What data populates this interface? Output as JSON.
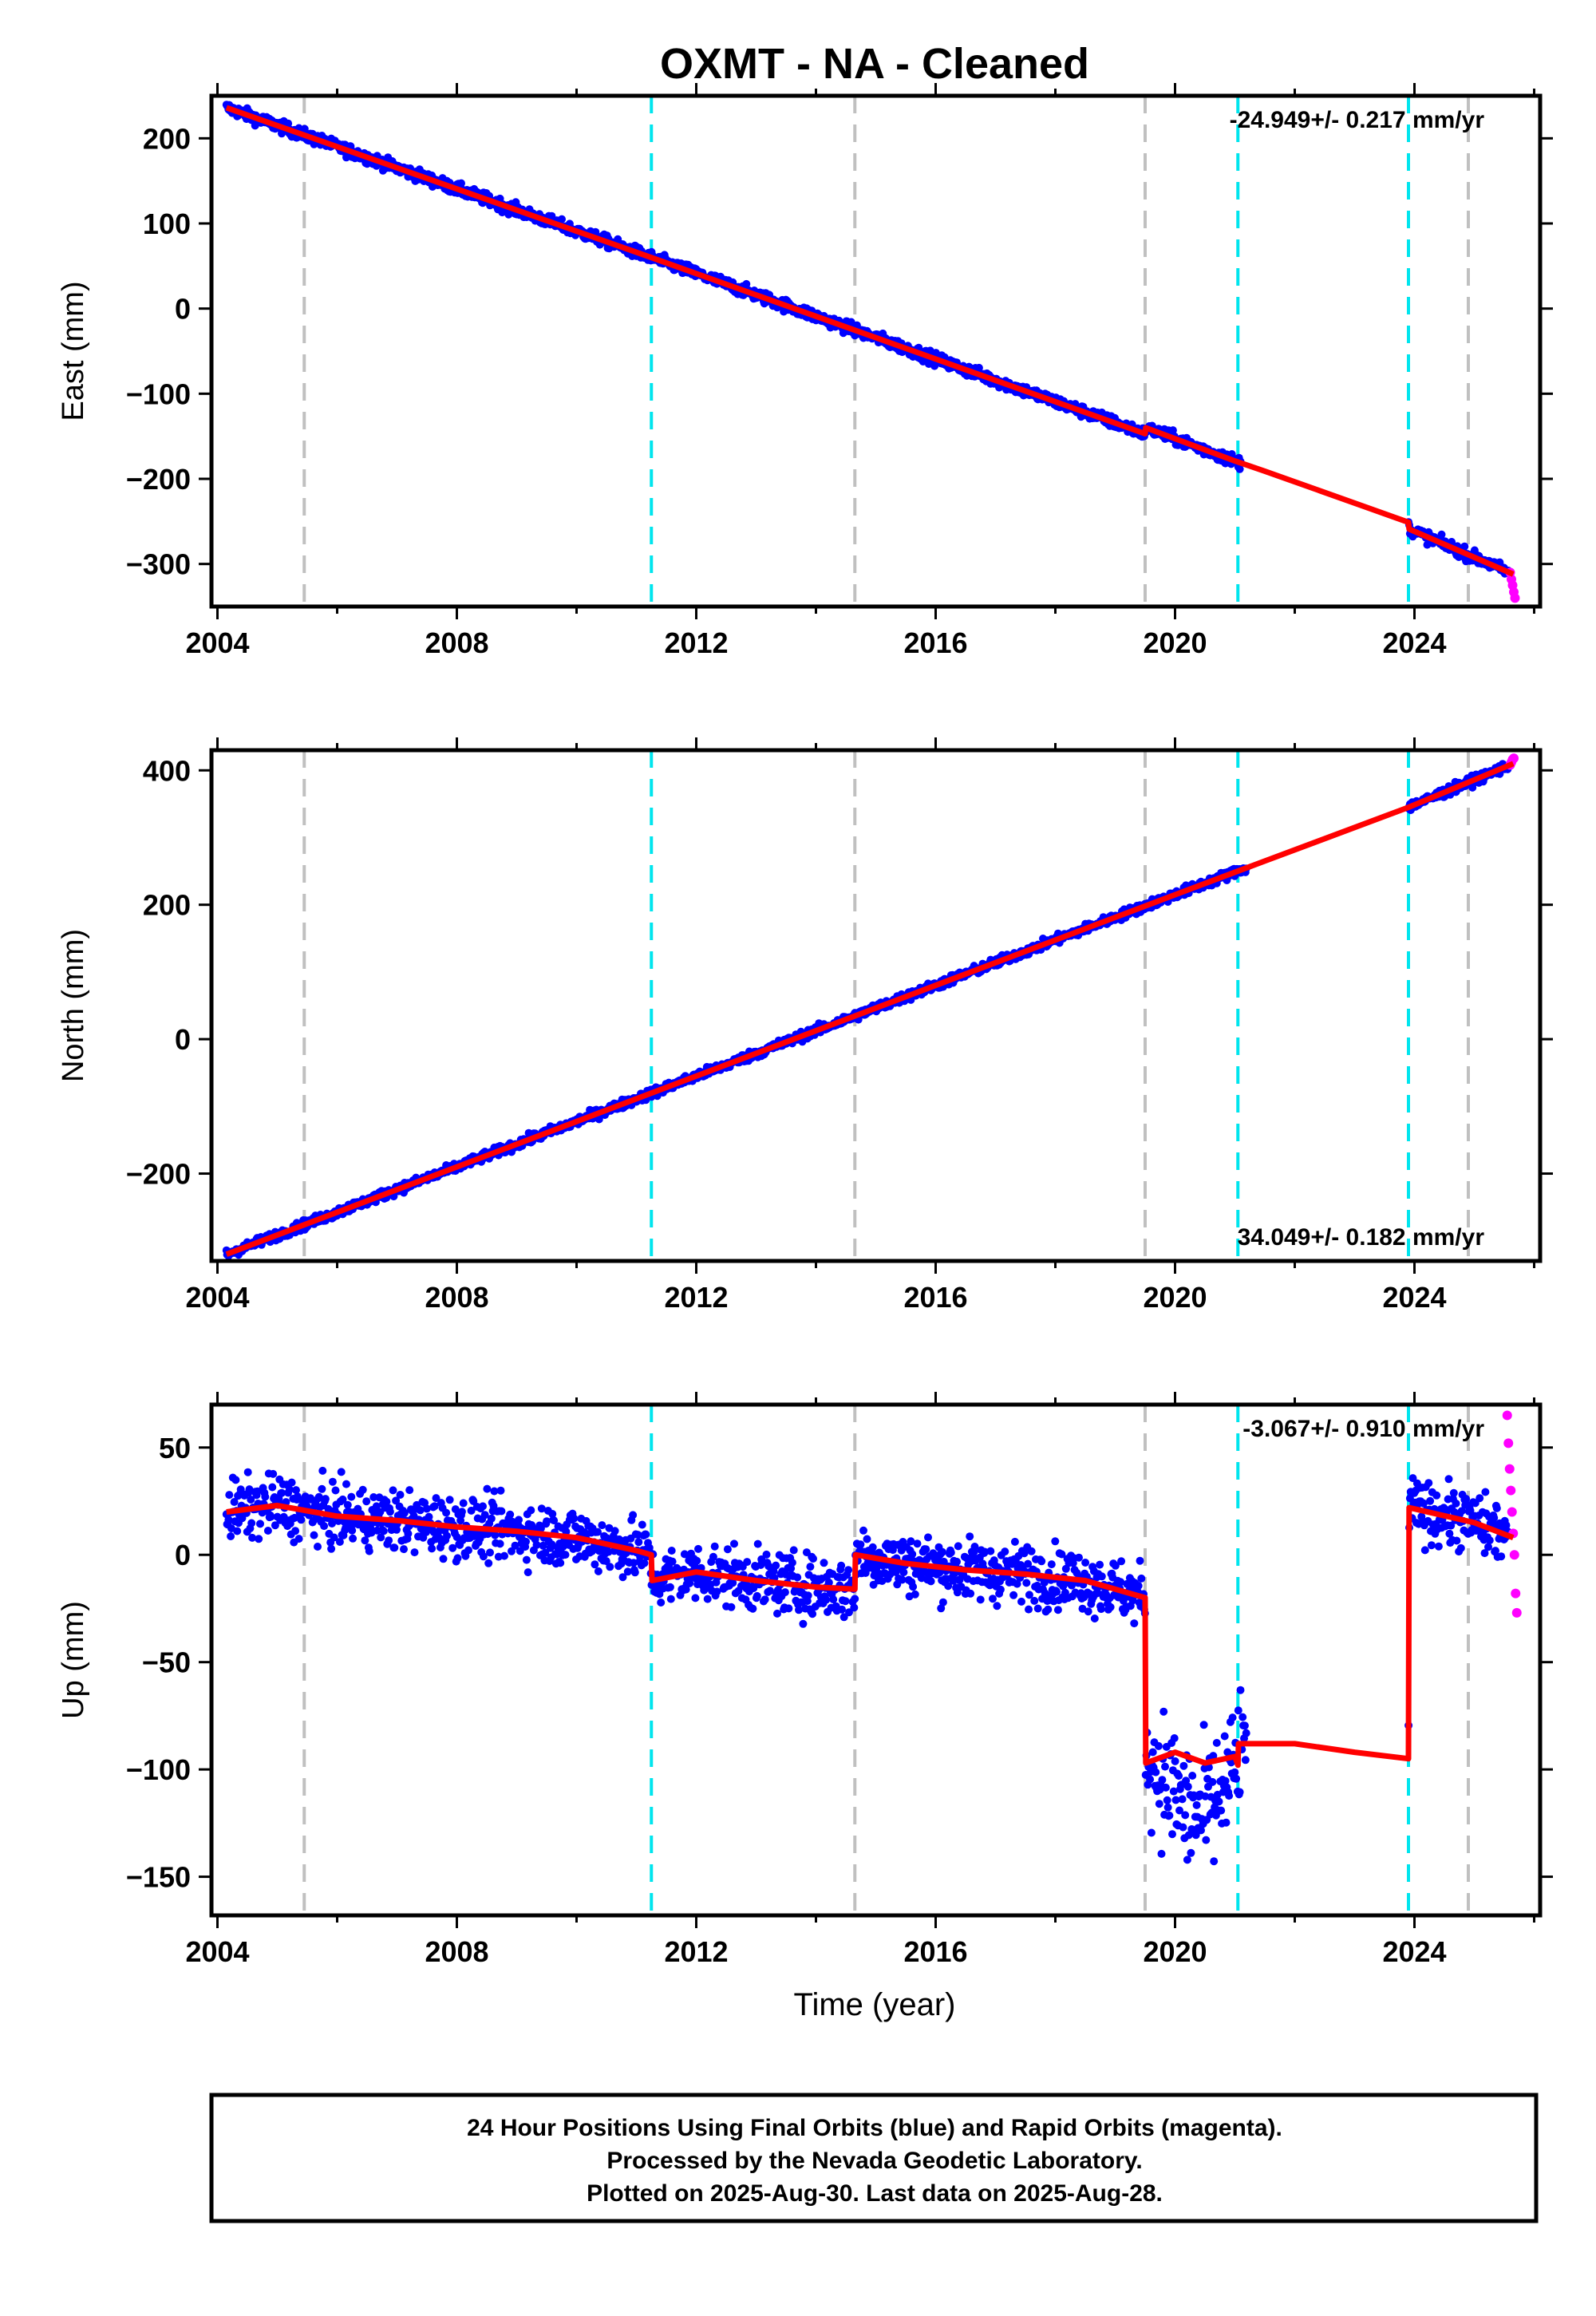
{
  "title": "OXMT  - NA - Cleaned",
  "x_axis_label": "Time (year)",
  "footer_lines": [
    "24 Hour Positions Using Final Orbits (blue) and Rapid Orbits (magenta).",
    "Processed by the Nevada Geodetic Laboratory.",
    "Plotted on 2025-Aug-30. Last data on 2025-Aug-28."
  ],
  "colors": {
    "final_orbits": "#0000ff",
    "rapid_orbits": "#ff00ff",
    "model_fit": "#ff0000",
    "equipment_change_lines": "#00e5ee",
    "other_event_lines": "#c0c0c0"
  },
  "chart_data": [
    {
      "type": "scatter",
      "component": "east",
      "ylabel": "East (mm)",
      "rate_text": "-24.949+/- 0.217 mm/yr",
      "rate_position": "top-right",
      "xlim": [
        2003.9,
        2026.1
      ],
      "ylim": [
        -350,
        250
      ],
      "x_ticks": [
        2004,
        2008,
        2012,
        2016,
        2020,
        2024
      ],
      "y_ticks": [
        -300,
        -200,
        -100,
        0,
        100,
        200
      ],
      "grid": false,
      "gaps": [
        [
          2021.1,
          2023.9
        ]
      ],
      "noise": 5,
      "event_lines_cyan": [
        2011.25,
        2021.05,
        2023.9
      ],
      "event_lines_gray": [
        2005.45,
        2014.65,
        2019.5,
        2024.9
      ],
      "fit_line": {
        "x": [
          2004.15,
          2011.25,
          2019.5,
          2019.51,
          2021.0,
          2021.5,
          2023.9,
          2023.91,
          2025.65
        ],
        "y": [
          236,
          60,
          -147,
          -140,
          -179,
          -191,
          -251,
          -259,
          -312
        ]
      },
      "rapid_points": {
        "x": [
          2025.6,
          2025.62,
          2025.64,
          2025.66,
          2025.68
        ],
        "y": [
          -310,
          -318,
          -325,
          -333,
          -340
        ]
      }
    },
    {
      "type": "scatter",
      "component": "north",
      "ylabel": "North (mm)",
      "rate_text": "34.049+/- 0.182 mm/yr",
      "rate_position": "bottom-right",
      "xlim": [
        2003.9,
        2026.1
      ],
      "ylim": [
        -330,
        430
      ],
      "x_ticks": [
        2004,
        2008,
        2012,
        2016,
        2020,
        2024
      ],
      "y_ticks": [
        -200,
        0,
        200,
        400
      ],
      "grid": false,
      "gaps": [
        [
          2021.2,
          2023.9
        ]
      ],
      "noise": 5,
      "event_lines_cyan": [
        2011.25,
        2021.05,
        2023.9
      ],
      "event_lines_gray": [
        2005.45,
        2014.65,
        2019.5,
        2024.9
      ],
      "fit_line": {
        "x": [
          2004.15,
          2012.0,
          2016.0,
          2020.0,
          2021.5,
          2023.9,
          2025.65
        ],
        "y": [
          -320,
          -55,
          80,
          215,
          265,
          345,
          410
        ]
      },
      "rapid_points": {
        "x": [
          2025.6,
          2025.62,
          2025.64,
          2025.66
        ],
        "y": [
          408,
          412,
          416,
          418
        ]
      }
    },
    {
      "type": "scatter",
      "component": "up",
      "ylabel": "Up (mm)",
      "rate_text": "-3.067+/- 0.910 mm/yr",
      "rate_position": "top-right",
      "xlim": [
        2003.9,
        2026.1
      ],
      "ylim": [
        -168,
        70
      ],
      "x_ticks": [
        2004,
        2008,
        2012,
        2016,
        2020,
        2024
      ],
      "y_ticks": [
        -150,
        -100,
        -50,
        0,
        50
      ],
      "grid": false,
      "gaps": [
        [
          2021.2,
          2023.9
        ]
      ],
      "noise": 10,
      "event_lines_cyan": [
        2011.25,
        2021.05,
        2023.9
      ],
      "event_lines_gray": [
        2005.45,
        2014.65,
        2019.5,
        2024.9
      ],
      "fit_line": {
        "x": [
          2004.15,
          2005.0,
          2006.0,
          2007.0,
          2008.0,
          2009.0,
          2010.0,
          2011.0,
          2011.25,
          2011.26,
          2012.0,
          2013.0,
          2014.0,
          2014.65,
          2014.66,
          2015.5,
          2016.5,
          2017.5,
          2018.5,
          2019.5,
          2019.51,
          2020.0,
          2020.5,
          2021.0,
          2021.05,
          2021.06,
          2022.0,
          2023.0,
          2023.9,
          2023.91,
          2025.0,
          2025.65
        ],
        "y": [
          20,
          23,
          18,
          16,
          13,
          11,
          8,
          2,
          0,
          -12,
          -8,
          -12,
          -15,
          -16,
          0,
          -4,
          -7,
          -9,
          -12,
          -20,
          -97,
          -92,
          -97,
          -94,
          -98,
          -88,
          -88,
          -92,
          -95,
          22,
          15,
          8
        ]
      },
      "rapid_points": {
        "x": [
          2025.55,
          2025.57,
          2025.59,
          2025.61,
          2025.63,
          2025.65,
          2025.67,
          2025.69,
          2025.71
        ],
        "y": [
          65,
          52,
          40,
          30,
          20,
          10,
          0,
          -18,
          -27
        ]
      }
    }
  ]
}
